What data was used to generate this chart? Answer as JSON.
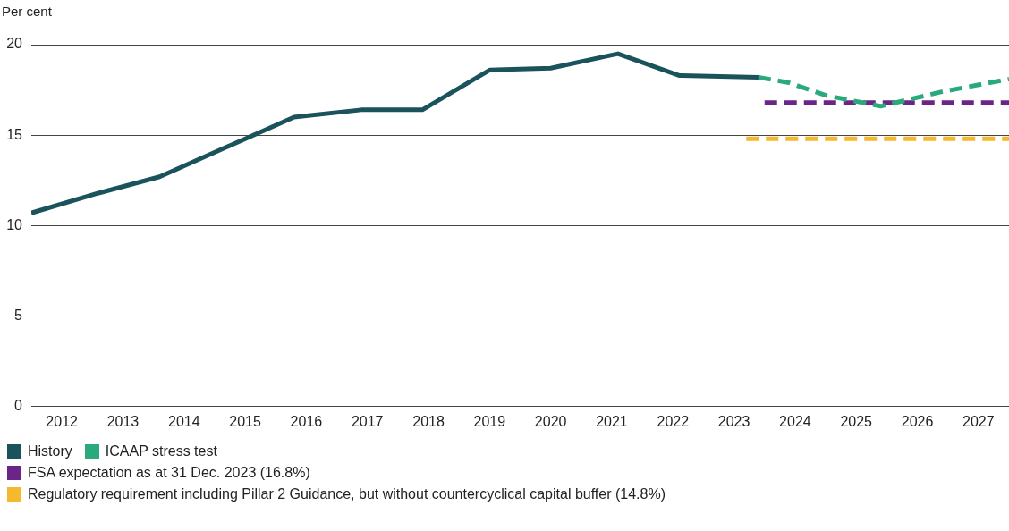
{
  "chart_data": {
    "type": "line",
    "ylabel": "Per cent",
    "xlim": [
      2012,
      2028
    ],
    "xticks": [
      {
        "value": 2012.5,
        "label": "2012"
      },
      {
        "value": 2013.5,
        "label": "2013"
      },
      {
        "value": 2014.5,
        "label": "2014"
      },
      {
        "value": 2015.5,
        "label": "2015"
      },
      {
        "value": 2016.5,
        "label": "2016"
      },
      {
        "value": 2017.5,
        "label": "2017"
      },
      {
        "value": 2018.5,
        "label": "2018"
      },
      {
        "value": 2019.5,
        "label": "2019"
      },
      {
        "value": 2020.5,
        "label": "2020"
      },
      {
        "value": 2021.5,
        "label": "2021"
      },
      {
        "value": 2022.5,
        "label": "2022"
      },
      {
        "value": 2023.5,
        "label": "2023"
      },
      {
        "value": 2024.5,
        "label": "2024"
      },
      {
        "value": 2025.5,
        "label": "2025"
      },
      {
        "value": 2026.5,
        "label": "2026"
      },
      {
        "value": 2027.5,
        "label": "2027"
      }
    ],
    "ylim": [
      0,
      20
    ],
    "yticks": [
      0,
      5,
      10,
      15,
      20
    ],
    "grid": "y",
    "legend": "bottom",
    "marker": "none",
    "series": [
      {
        "name": "History",
        "color": "#1a535c",
        "line_style": "solid",
        "x": [
          2012.0,
          2013.1,
          2014.1,
          2016.3,
          2017.4,
          2018.4,
          2019.5,
          2020.5,
          2021.6,
          2022.6,
          2023.9
        ],
        "values": [
          10.7,
          11.8,
          12.7,
          16.0,
          16.4,
          16.4,
          18.6,
          18.7,
          19.5,
          18.3,
          18.2
        ]
      },
      {
        "name": "ICAAP stress test",
        "color": "#2aaa7a",
        "line_style": "dashed",
        "x": [
          2023.9,
          2024.4,
          2025.0,
          2025.9,
          2026.9,
          2028.0
        ],
        "values": [
          18.2,
          17.9,
          17.2,
          16.6,
          17.4,
          18.1
        ]
      },
      {
        "name": "FSA expectation as at 31 Dec. 2023 (16.8%)",
        "color": "#6b2589",
        "line_style": "dashed",
        "x": [
          2024.0,
          2028.0
        ],
        "values": [
          16.8,
          16.8
        ]
      },
      {
        "name": "Regulatory requirement including Pillar 2 Guidance, but without countercyclical capital buffer (14.8%)",
        "color": "#f5b82e",
        "line_style": "dashed",
        "x": [
          2023.7,
          2028.0
        ],
        "values": [
          14.8,
          14.8
        ]
      }
    ]
  }
}
